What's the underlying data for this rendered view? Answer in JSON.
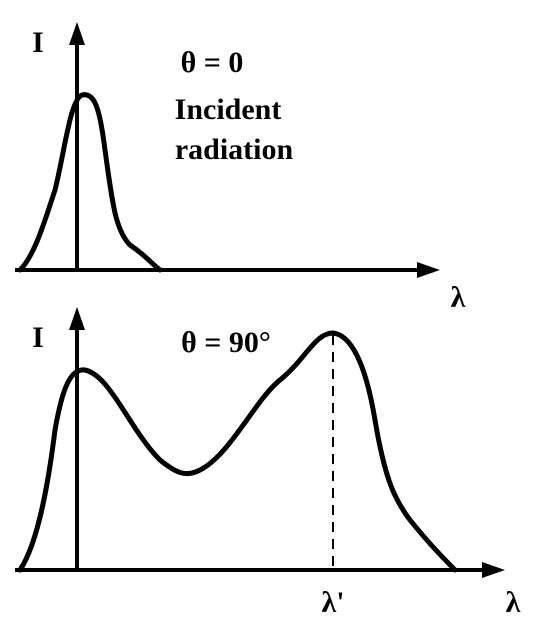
{
  "panels": [
    {
      "y_axis": "I",
      "x_axis": "λ",
      "angle": "θ = 0",
      "caption": [
        "Incident",
        "radiation"
      ]
    },
    {
      "y_axis": "I",
      "x_axis": "λ",
      "angle": "θ = 90°",
      "marker": "λ'"
    }
  ]
}
